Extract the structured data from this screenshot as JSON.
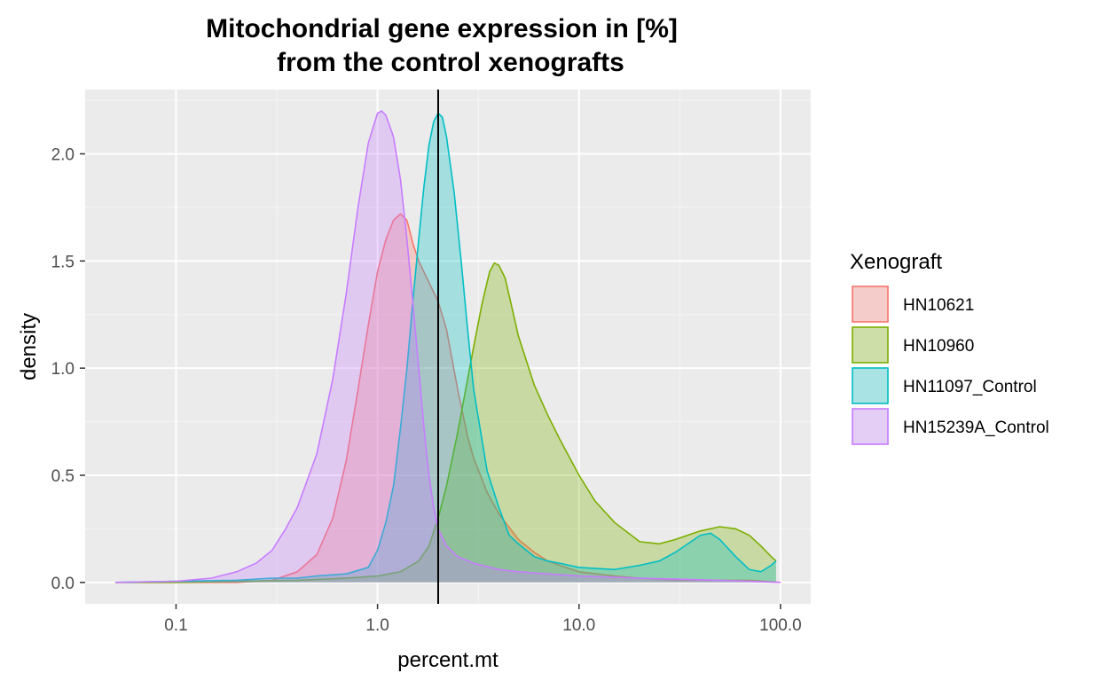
{
  "chart_data": {
    "type": "area",
    "title_line1": "Mitochondrial gene expression in [%]",
    "title_line2": "from the control xenografts",
    "xlabel": "percent.mt",
    "ylabel": "density",
    "x_scale": "log10",
    "xlim": [
      0.05,
      100
    ],
    "ylim": [
      -0.1,
      2.3
    ],
    "x_ticks": [
      {
        "value": 0.1,
        "label": "0.1"
      },
      {
        "value": 1,
        "label": "1.0"
      },
      {
        "value": 10,
        "label": "10.0"
      },
      {
        "value": 100,
        "label": "100.0"
      }
    ],
    "y_ticks": [
      {
        "value": 0,
        "label": "0.0"
      },
      {
        "value": 0.5,
        "label": "0.5"
      },
      {
        "value": 1,
        "label": "1.0"
      },
      {
        "value": 1.5,
        "label": "1.5"
      },
      {
        "value": 2,
        "label": "2.0"
      }
    ],
    "vline_x": 2,
    "grid": true,
    "legend_title": "Xenograft",
    "legend_position": "right",
    "series": [
      {
        "name": "HN10621",
        "color": "#F8766D",
        "x": [
          0.05,
          0.1,
          0.2,
          0.3,
          0.4,
          0.5,
          0.6,
          0.7,
          0.8,
          0.9,
          1.0,
          1.1,
          1.2,
          1.3,
          1.4,
          1.5,
          1.6,
          1.8,
          2.0,
          2.2,
          2.5,
          2.8,
          3.0,
          3.5,
          4.0,
          5.0,
          6.0,
          7.0,
          8.0,
          10,
          15,
          20,
          30,
          50,
          70,
          100
        ],
        "y": [
          0.0,
          0.0,
          0.0,
          0.01,
          0.05,
          0.13,
          0.3,
          0.57,
          0.9,
          1.2,
          1.45,
          1.6,
          1.69,
          1.72,
          1.69,
          1.58,
          1.5,
          1.4,
          1.31,
          1.18,
          0.9,
          0.68,
          0.58,
          0.42,
          0.32,
          0.2,
          0.14,
          0.1,
          0.08,
          0.05,
          0.03,
          0.02,
          0.01,
          0.01,
          0.01,
          0.0
        ]
      },
      {
        "name": "HN10960",
        "color": "#7CAE00",
        "x": [
          0.05,
          0.1,
          0.2,
          0.4,
          0.7,
          1.0,
          1.3,
          1.6,
          1.8,
          2.0,
          2.2,
          2.5,
          2.8,
          3.0,
          3.3,
          3.6,
          3.8,
          4.0,
          4.3,
          4.6,
          5.0,
          6.0,
          7.0,
          8.0,
          10,
          12,
          15,
          20,
          25,
          30,
          40,
          50,
          60,
          70,
          80,
          90,
          95
        ],
        "y": [
          0.0,
          0.0,
          0.005,
          0.01,
          0.02,
          0.03,
          0.05,
          0.1,
          0.17,
          0.3,
          0.45,
          0.7,
          0.95,
          1.1,
          1.3,
          1.45,
          1.49,
          1.48,
          1.42,
          1.3,
          1.15,
          0.92,
          0.78,
          0.67,
          0.5,
          0.38,
          0.28,
          0.19,
          0.18,
          0.2,
          0.24,
          0.26,
          0.25,
          0.22,
          0.17,
          0.12,
          0.1
        ]
      },
      {
        "name": "HN11097_Control",
        "color": "#00BFC4",
        "x": [
          0.05,
          0.1,
          0.2,
          0.3,
          0.4,
          0.5,
          0.7,
          0.9,
          1.0,
          1.1,
          1.2,
          1.3,
          1.4,
          1.5,
          1.6,
          1.7,
          1.8,
          1.9,
          2.0,
          2.1,
          2.2,
          2.4,
          2.6,
          2.8,
          3.0,
          3.5,
          4.0,
          4.5,
          5.0,
          6.0,
          7.0,
          8.0,
          10,
          15,
          20,
          25,
          30,
          40,
          45,
          50,
          60,
          70,
          80,
          90,
          95
        ],
        "y": [
          0.0,
          0.005,
          0.01,
          0.02,
          0.02,
          0.03,
          0.04,
          0.07,
          0.15,
          0.28,
          0.45,
          0.72,
          1.0,
          1.32,
          1.6,
          1.85,
          2.04,
          2.15,
          2.19,
          2.17,
          2.08,
          1.82,
          1.5,
          1.18,
          0.9,
          0.52,
          0.35,
          0.22,
          0.18,
          0.12,
          0.1,
          0.09,
          0.07,
          0.06,
          0.08,
          0.1,
          0.14,
          0.22,
          0.23,
          0.2,
          0.12,
          0.06,
          0.05,
          0.08,
          0.1
        ]
      },
      {
        "name": "HN15239A_Control",
        "color": "#C77CFF",
        "x": [
          0.05,
          0.1,
          0.15,
          0.2,
          0.25,
          0.3,
          0.35,
          0.4,
          0.5,
          0.6,
          0.7,
          0.8,
          0.9,
          1.0,
          1.05,
          1.1,
          1.2,
          1.3,
          1.4,
          1.5,
          1.6,
          1.7,
          1.8,
          1.9,
          2.0,
          2.2,
          2.5,
          3.0,
          4.0,
          5.0,
          7.0,
          10,
          20,
          50,
          100
        ],
        "y": [
          0.0,
          0.005,
          0.02,
          0.05,
          0.09,
          0.15,
          0.25,
          0.35,
          0.6,
          0.95,
          1.35,
          1.75,
          2.05,
          2.19,
          2.2,
          2.18,
          2.08,
          1.88,
          1.6,
          1.3,
          1.0,
          0.72,
          0.5,
          0.35,
          0.25,
          0.17,
          0.12,
          0.09,
          0.06,
          0.05,
          0.04,
          0.03,
          0.02,
          0.01,
          0.0
        ]
      }
    ]
  }
}
